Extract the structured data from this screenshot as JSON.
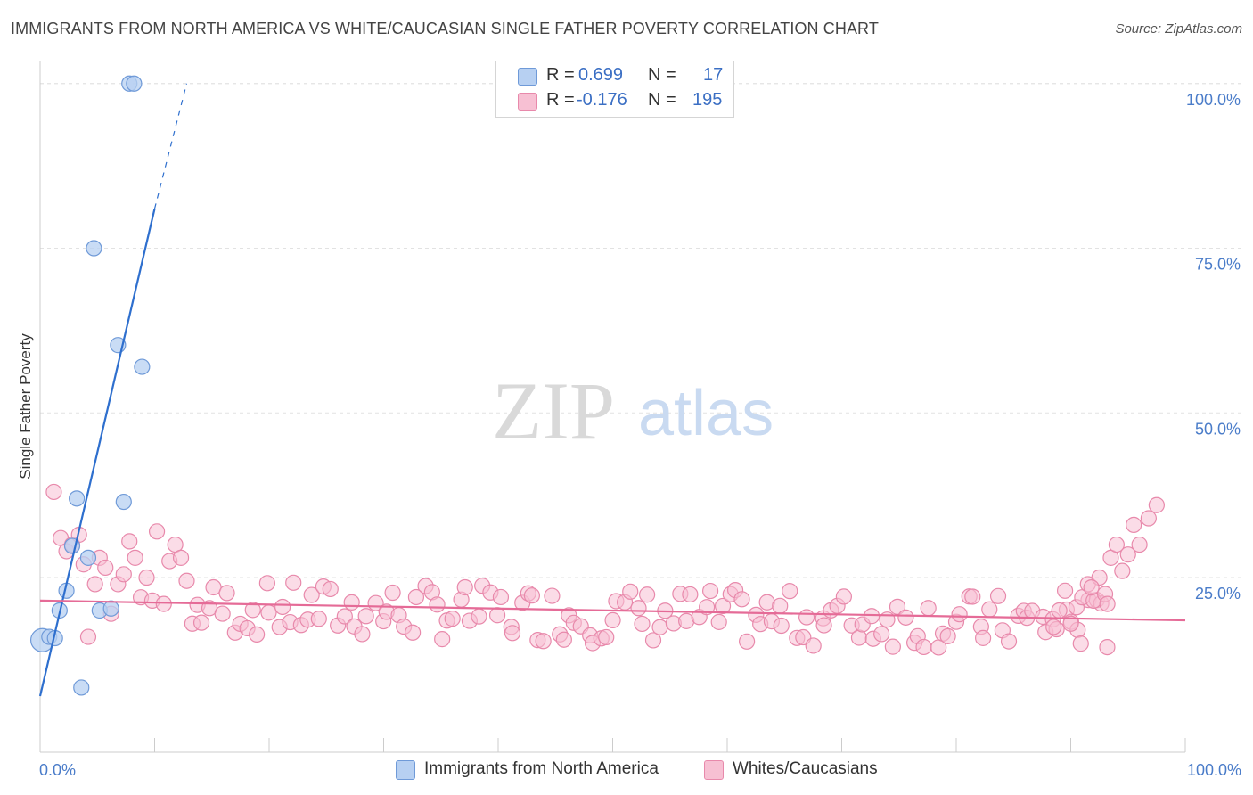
{
  "title": "IMMIGRANTS FROM NORTH AMERICA VS WHITE/CAUCASIAN SINGLE FATHER POVERTY CORRELATION CHART",
  "source": "Source: ZipAtlas.com",
  "watermark": {
    "zip": "ZIP",
    "atlas": "atlas"
  },
  "colors": {
    "blue_fill": "#b7d0f2",
    "blue_stroke": "#6f9ad8",
    "blue_line": "#2e6fce",
    "pink_fill": "#f7c0d3",
    "pink_stroke": "#e889ab",
    "pink_line": "#e56b97",
    "grid": "#e2e2e2",
    "axis_text": "#4a7cc9"
  },
  "legend": [
    {
      "r_label": "R =",
      "r_value": "0.699",
      "n_label": "N =",
      "n_value": "17",
      "color": "#b7d0f2"
    },
    {
      "r_label": "R =",
      "r_value": "-0.176",
      "n_label": "N =",
      "n_value": "195",
      "color": "#f7c0d3"
    }
  ],
  "bottom_legend": [
    {
      "label": "Immigrants from North America",
      "color": "#b7d0f2"
    },
    {
      "label": "Whites/Caucasians",
      "color": "#f7c0d3"
    }
  ],
  "chart_data": {
    "type": "scatter",
    "title": "IMMIGRANTS FROM NORTH AMERICA VS WHITE/CAUCASIAN SINGLE FATHER POVERTY CORRELATION CHART",
    "xlabel": "",
    "ylabel": "Single Father Poverty",
    "xlim": [
      0,
      100
    ],
    "ylim": [
      2,
      102
    ],
    "x_tick_labels": [
      "0.0%",
      "100.0%"
    ],
    "y_ticks": [
      25,
      50,
      75,
      100
    ],
    "y_tick_labels": [
      "25.0%",
      "50.0%",
      "75.0%",
      "100.0%"
    ],
    "grid": true,
    "series": [
      {
        "name": "Immigrants from North America",
        "r": 0.699,
        "n": 17,
        "points": [
          [
            0.2,
            15.5
          ],
          [
            0.8,
            16.0
          ],
          [
            1.3,
            15.8
          ],
          [
            1.7,
            20.0
          ],
          [
            2.3,
            23.0
          ],
          [
            2.8,
            29.8
          ],
          [
            3.2,
            37.0
          ],
          [
            3.6,
            8.3
          ],
          [
            4.2,
            28.0
          ],
          [
            4.7,
            75.0
          ],
          [
            5.2,
            20.0
          ],
          [
            6.2,
            20.3
          ],
          [
            6.8,
            60.3
          ],
          [
            7.3,
            36.5
          ],
          [
            7.8,
            100.0
          ],
          [
            8.2,
            100.0
          ],
          [
            8.9,
            57.0
          ]
        ],
        "trend": {
          "x0": 0,
          "y0": 7,
          "x1": 10,
          "y1": 81,
          "dash_to_x": 12.8,
          "dash_to_y": 100
        }
      },
      {
        "name": "Whites/Caucasians",
        "r": -0.176,
        "n": 195,
        "trend": {
          "x0": 0,
          "y0": 21.5,
          "x1": 100,
          "y1": 18.5
        }
      }
    ]
  },
  "axis": {
    "y_label": "Single Father Poverty",
    "x_left": "0.0%",
    "x_right": "100.0%"
  }
}
